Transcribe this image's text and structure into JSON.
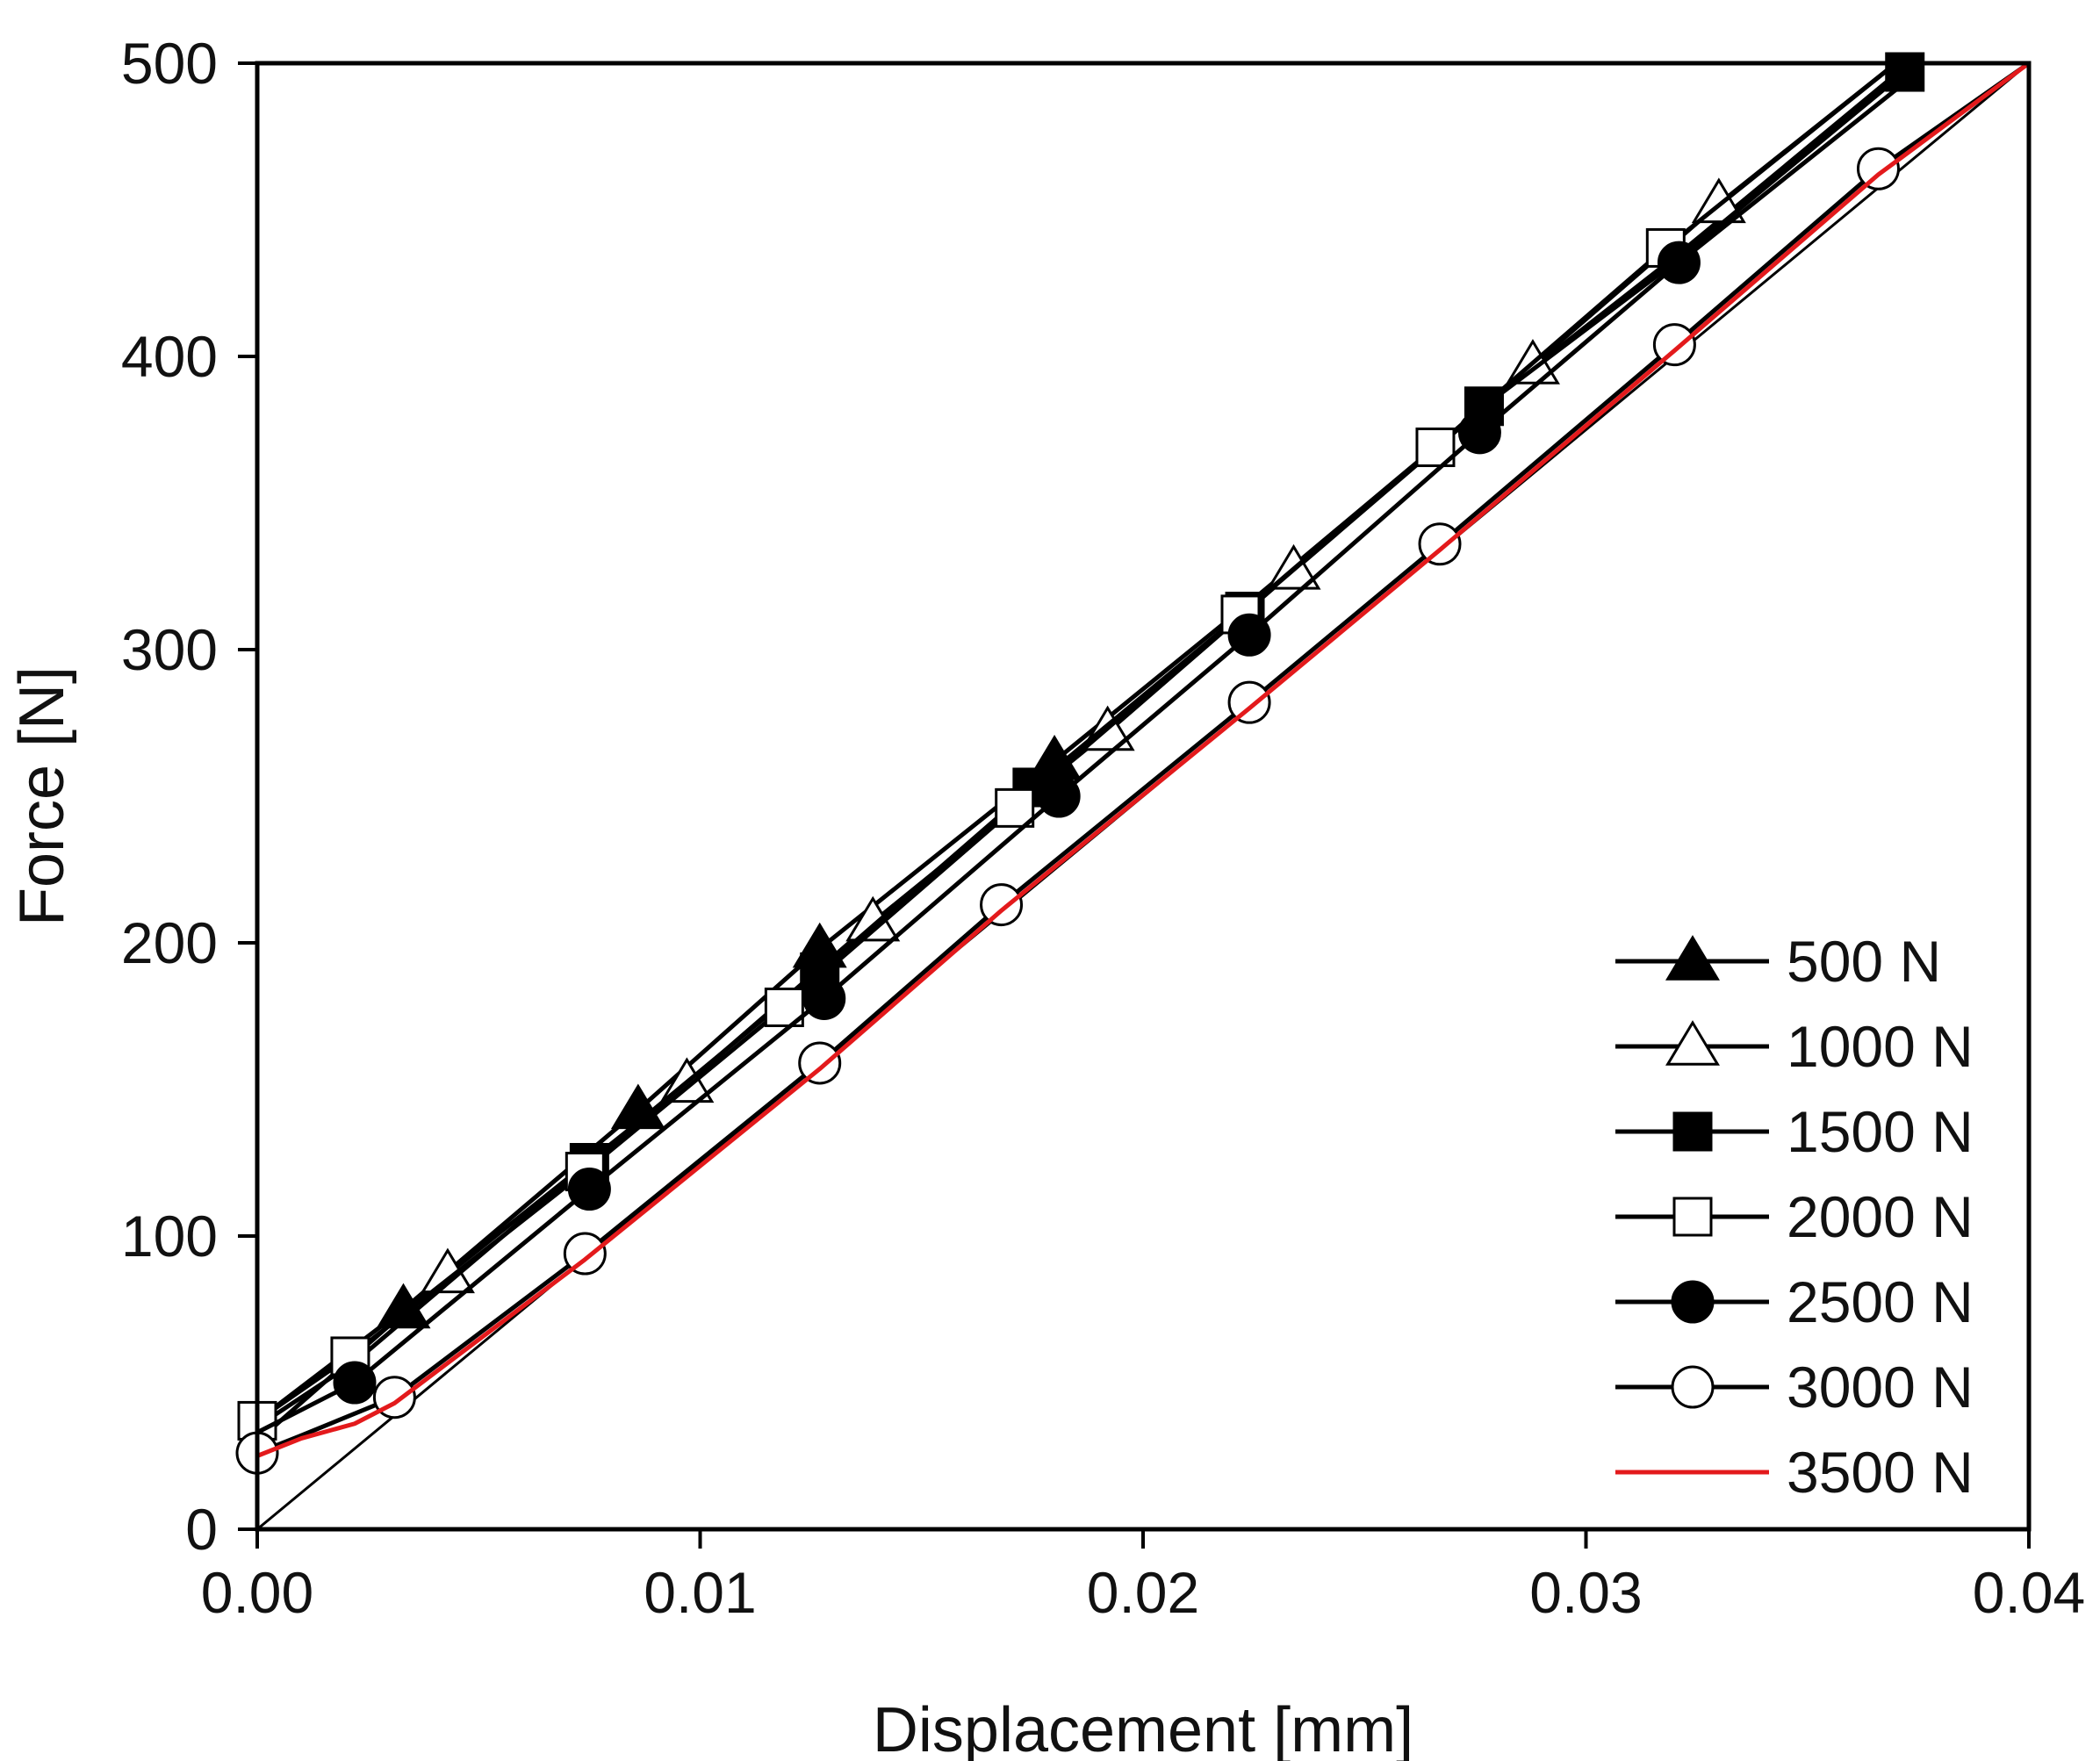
{
  "chart_data": {
    "type": "line",
    "title": "",
    "xlabel": "Displacement [mm]",
    "ylabel": "Force [N]",
    "xlim": [
      0,
      0.04
    ],
    "ylim": [
      0,
      500
    ],
    "xticks": [
      0,
      0.01,
      0.02,
      0.03,
      0.04
    ],
    "xtick_labels": [
      "0.00",
      "0.01",
      "0.02",
      "0.03",
      "0.04"
    ],
    "yticks": [
      0,
      100,
      200,
      300,
      400,
      500
    ],
    "ytick_labels": [
      "0",
      "100",
      "200",
      "300",
      "400",
      "500"
    ],
    "grid": false,
    "legend_position": "bottom-right",
    "reference_line": {
      "name": "linear reference",
      "x": [
        0,
        0.04
      ],
      "y": [
        0,
        500
      ]
    },
    "series": [
      {
        "name": "500 N",
        "marker": "triangle",
        "fill": "filled",
        "color": "#000000",
        "x": [
          0.0,
          0.0033,
          0.0086,
          0.0127,
          0.018,
          0.0224,
          0.0277,
          0.0321,
          0.0373
        ],
        "y": [
          37,
          75,
          143,
          198,
          262,
          316,
          383,
          435,
          500
        ],
        "marker_x": [
          0.0033,
          0.0086,
          0.0127,
          0.018
        ],
        "marker_y": [
          75,
          143,
          198,
          262
        ]
      },
      {
        "name": "1000 N",
        "marker": "triangle",
        "fill": "open",
        "color": "#000000",
        "x": [
          0.0,
          0.0043,
          0.0097,
          0.0139,
          0.0192,
          0.0234,
          0.0288,
          0.033,
          0.037
        ],
        "y": [
          30,
          87,
          152,
          207,
          272,
          327,
          397,
          452,
          500
        ],
        "marker_x": [
          0.0043,
          0.0097,
          0.0139,
          0.0192,
          0.0234,
          0.0288,
          0.033
        ],
        "marker_y": [
          87,
          152,
          207,
          272,
          327,
          397,
          452
        ]
      },
      {
        "name": "1500 N",
        "marker": "square",
        "fill": "filled",
        "color": "#000000",
        "x": [
          0.0,
          0.0022,
          0.0075,
          0.0127,
          0.0175,
          0.0223,
          0.0277,
          0.032,
          0.0372
        ],
        "y": [
          35,
          57,
          125,
          190,
          253,
          313,
          383,
          432,
          497
        ],
        "marker_x": [
          0.0075,
          0.0127,
          0.0175,
          0.0223,
          0.0277,
          0.0372
        ],
        "marker_y": [
          125,
          190,
          253,
          313,
          383,
          497
        ]
      },
      {
        "name": "2000 N",
        "marker": "square",
        "fill": "open",
        "color": "#000000",
        "x": [
          0.0,
          0.0021,
          0.0074,
          0.0119,
          0.0171,
          0.0222,
          0.0266,
          0.0318,
          0.037
        ],
        "y": [
          37,
          59,
          122,
          178,
          246,
          312,
          369,
          437,
          500
        ],
        "marker_x": [
          0.0,
          0.0021,
          0.0074,
          0.0119,
          0.0171,
          0.0222,
          0.0266,
          0.0318
        ],
        "marker_y": [
          37,
          59,
          122,
          178,
          246,
          312,
          369,
          437
        ]
      },
      {
        "name": "2500 N",
        "marker": "circle",
        "fill": "filled",
        "color": "#000000",
        "x": [
          0.0,
          0.0022,
          0.0075,
          0.0128,
          0.0181,
          0.0224,
          0.0276,
          0.0321,
          0.0375
        ],
        "y": [
          33,
          50,
          116,
          181,
          250,
          305,
          374,
          432,
          497
        ],
        "marker_x": [
          0.0022,
          0.0075,
          0.0128,
          0.0181,
          0.0224,
          0.0276,
          0.0321
        ],
        "marker_y": [
          50,
          116,
          181,
          250,
          305,
          374,
          432
        ]
      },
      {
        "name": "3000 N",
        "marker": "circle",
        "fill": "open",
        "color": "#000000",
        "x": [
          0.0,
          0.001,
          0.0031,
          0.0074,
          0.0127,
          0.0168,
          0.0224,
          0.0267,
          0.032,
          0.0366,
          0.04
        ],
        "y": [
          26,
          32,
          45,
          94,
          159,
          213,
          282,
          336,
          404,
          464,
          500
        ],
        "marker_x": [
          0.0,
          0.0031,
          0.0074,
          0.0127,
          0.0168,
          0.0224,
          0.0267,
          0.032,
          0.0366
        ],
        "marker_y": [
          26,
          45,
          94,
          159,
          213,
          282,
          336,
          404,
          464
        ]
      },
      {
        "name": "3500 N",
        "marker": "none",
        "fill": "none",
        "color": "#e31a1c",
        "x": [
          0.0,
          0.001,
          0.0022,
          0.0031,
          0.0074,
          0.0127,
          0.0168,
          0.0224,
          0.0267,
          0.032,
          0.0366,
          0.04
        ],
        "y": [
          25,
          31,
          36,
          43,
          92,
          157,
          211,
          280,
          334,
          402,
          462,
          500
        ],
        "marker_x": [],
        "marker_y": []
      }
    ]
  }
}
